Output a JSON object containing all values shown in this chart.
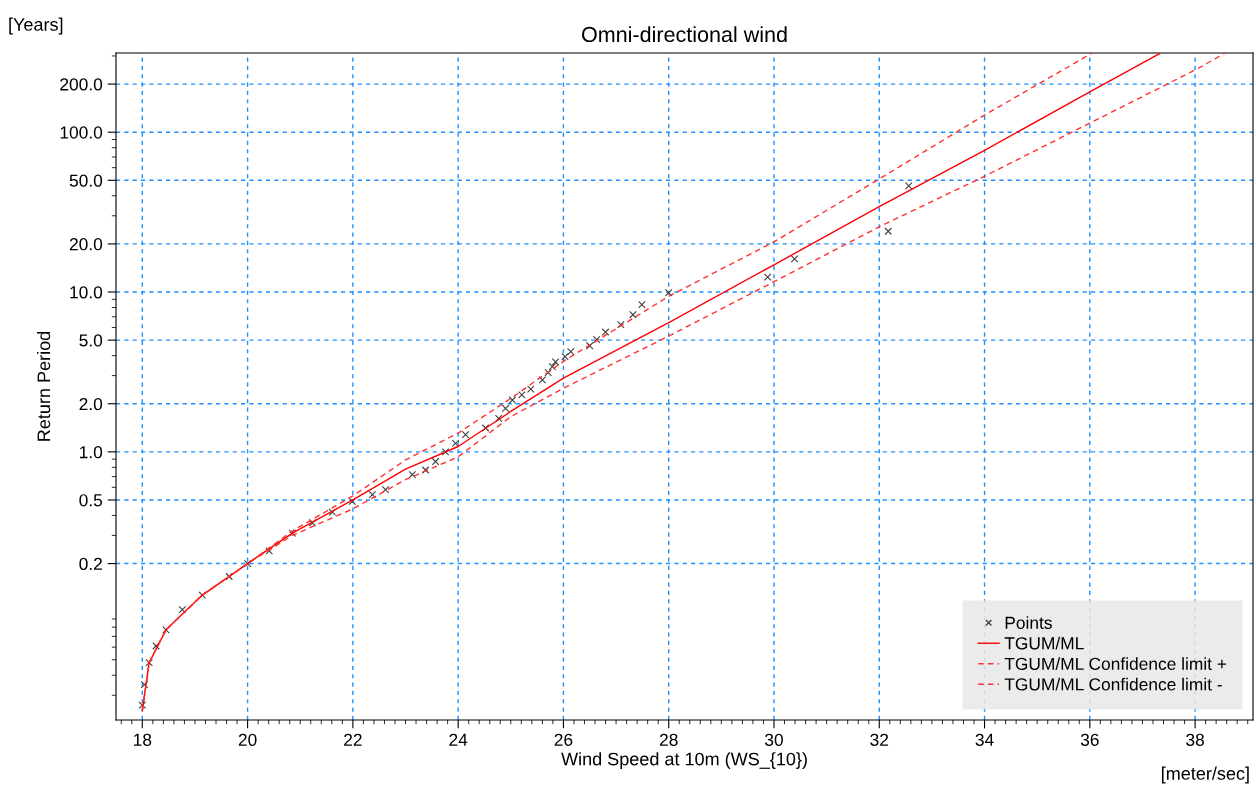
{
  "chart_data": {
    "type": "line",
    "title": "Omni-directional wind",
    "xlabel": "Wind Speed at 10m (WS_{10})",
    "ylabel": "Return Period",
    "annotations": [
      "[Years]",
      "[meter/sec]"
    ],
    "log": true,
    "xlim": [
      17.5,
      39.1
    ],
    "xticks": [
      18,
      20,
      22,
      24,
      26,
      28,
      30,
      32,
      34,
      36,
      38
    ],
    "ylim": [
      0.021,
      313
    ],
    "yticks": [
      0.2,
      0.5,
      {
        "value": 1,
        "label": "1.0"
      },
      {
        "value": 2,
        "label": "2.0"
      },
      {
        "value": 5,
        "label": "5.0"
      },
      {
        "value": 10,
        "label": "10.0"
      },
      {
        "value": 20,
        "label": "20.0"
      },
      {
        "value": 50,
        "label": "50.0"
      },
      {
        "value": 100,
        "label": "100.0"
      },
      {
        "value": 200,
        "label": "200.0"
      }
    ],
    "grid": true,
    "legend": "bottom right",
    "series": [
      {
        "name": "Points",
        "type": "scatter",
        "marker": "cross",
        "color": "#404040",
        "x": [
          18.0,
          18.04,
          18.13,
          18.26,
          18.45,
          18.76,
          19.14,
          19.65,
          20.0,
          20.41,
          20.85,
          21.23,
          21.61,
          21.99,
          22.37,
          22.62,
          23.13,
          23.38,
          23.57,
          23.76,
          23.95,
          24.14,
          24.52,
          24.77,
          24.9,
          25.03,
          25.21,
          25.38,
          25.6,
          25.71,
          25.79,
          25.85,
          26.03,
          26.14,
          26.5,
          26.63,
          26.8,
          27.09,
          27.32,
          27.49,
          28.0,
          29.88,
          30.39,
          32.17,
          32.56
        ],
        "values": [
          0.026,
          0.035,
          0.048,
          0.061,
          0.077,
          0.103,
          0.127,
          0.166,
          0.2,
          0.24,
          0.31,
          0.36,
          0.42,
          0.49,
          0.54,
          0.58,
          0.72,
          0.77,
          0.87,
          1.0,
          1.13,
          1.28,
          1.41,
          1.62,
          1.87,
          2.11,
          2.27,
          2.47,
          2.82,
          3.13,
          3.41,
          3.65,
          3.94,
          4.24,
          4.61,
          5.03,
          5.62,
          6.25,
          7.21,
          8.33,
          9.9,
          12.4,
          16.1,
          24.0,
          46.2
        ]
      },
      {
        "name": "TGUM/ML",
        "line_style": "solid",
        "color": "#ff0000",
        "x": [
          18.0,
          18.13,
          18.45,
          19.14,
          20.0,
          20.85,
          22.0,
          23.0,
          24.0,
          25.0,
          26.0,
          28.0,
          30.0,
          32.0,
          34.0,
          36.0,
          37.33
        ],
        "values": [
          0.024,
          0.048,
          0.077,
          0.127,
          0.2,
          0.31,
          0.5,
          0.78,
          1.08,
          1.79,
          2.89,
          6.43,
          14.8,
          34.2,
          77,
          179,
          311
        ]
      },
      {
        "name": "TGUM/ML Confidence limit +",
        "line_style": "dashed",
        "color": "#ff3030",
        "x": [
          18.0,
          18.13,
          18.45,
          19.14,
          20.0,
          20.85,
          22.0,
          23.0,
          24.0,
          25.0,
          26.04,
          28.0,
          30.0,
          32.0,
          34.0,
          36.03
        ],
        "values": [
          0.024,
          0.048,
          0.077,
          0.127,
          0.2,
          0.32,
          0.53,
          0.89,
          1.31,
          2.16,
          3.76,
          9.4,
          20.6,
          51,
          128,
          311
        ]
      },
      {
        "name": "TGUM/ML Confidence limit -",
        "line_style": "dashed",
        "color": "#ff3030",
        "x": [
          18.0,
          18.13,
          18.45,
          19.14,
          20.0,
          20.85,
          22.0,
          23.0,
          24.0,
          25.0,
          26.0,
          28.0,
          30.0,
          32.0,
          34.0,
          36.0,
          38.0,
          38.56
        ],
        "values": [
          0.024,
          0.048,
          0.077,
          0.127,
          0.2,
          0.3,
          0.44,
          0.67,
          0.93,
          1.66,
          2.5,
          5.3,
          11.6,
          25.6,
          53,
          114,
          245,
          311
        ]
      }
    ]
  }
}
